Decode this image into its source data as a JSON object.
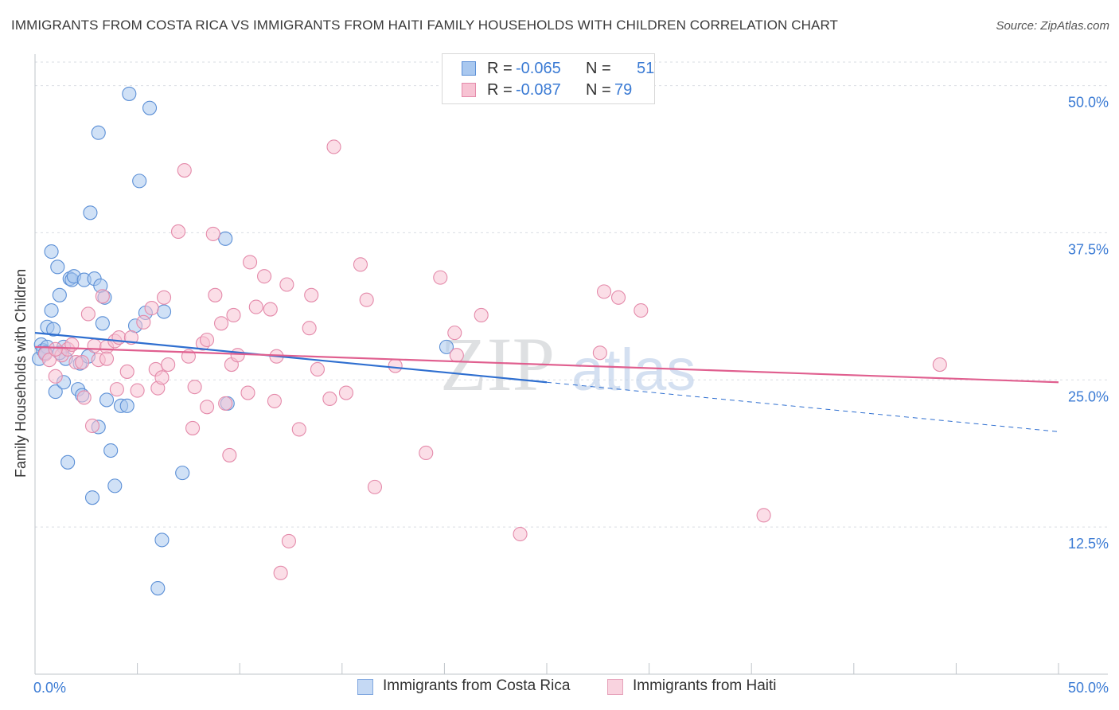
{
  "title": "IMMIGRANTS FROM COSTA RICA VS IMMIGRANTS FROM HAITI FAMILY HOUSEHOLDS WITH CHILDREN CORRELATION CHART",
  "source": "Source: ZipAtlas.com",
  "watermark": {
    "zip": "ZIP",
    "atlas": "atlas"
  },
  "legend": {
    "rows": [
      {
        "r_label": "R =",
        "r_value": "-0.065",
        "n_label": "N =",
        "n_value": "51",
        "color": "#a9c8ef",
        "border": "#5b8fd6"
      },
      {
        "r_label": "R =",
        "r_value": "-0.087",
        "n_label": "N =",
        "n_value": "79",
        "color": "#f7c3d3",
        "border": "#e48aaa"
      }
    ]
  },
  "bottom_legend": [
    {
      "label": "Immigrants from Costa Rica",
      "color": "#c5d9f4",
      "border": "#7ea6df"
    },
    {
      "label": "Immigrants from Haiti",
      "color": "#f9d3df",
      "border": "#e6a2ba"
    }
  ],
  "chart_data": {
    "type": "scatter",
    "title": "IMMIGRANTS FROM COSTA RICA VS IMMIGRANTS FROM HAITI FAMILY HOUSEHOLDS WITH CHILDREN CORRELATION CHART",
    "xlabel": "",
    "ylabel": "Family Households with Children",
    "xlim": [
      0,
      50
    ],
    "ylim": [
      0,
      52
    ],
    "x_tick_labels": [
      {
        "value": 0,
        "label": "0.0%"
      },
      {
        "value": 50,
        "label": "50.0%"
      }
    ],
    "y_ticks": [
      {
        "value": 12.5,
        "label": "12.5%"
      },
      {
        "value": 25,
        "label": "25.0%"
      },
      {
        "value": 37.5,
        "label": "37.5%"
      },
      {
        "value": 50,
        "label": "50.0%"
      }
    ],
    "series": [
      {
        "name": "Immigrants from Costa Rica",
        "color": "#a9c8ef",
        "stroke": "#5b8fd6",
        "trend": {
          "color": "#2f6fd0",
          "x0": 0,
          "y0": 29.0,
          "x1": 25,
          "y1": 24.8,
          "dash_to_x": 50,
          "dash_to_y": 20.6
        },
        "points": [
          [
            0.2,
            26.8
          ],
          [
            0.3,
            28.0
          ],
          [
            0.4,
            27.5
          ],
          [
            0.5,
            27.2
          ],
          [
            0.6,
            29.5
          ],
          [
            0.6,
            27.8
          ],
          [
            0.8,
            30.9
          ],
          [
            0.9,
            29.3
          ],
          [
            0.8,
            35.9
          ],
          [
            1.0,
            24.0
          ],
          [
            1.1,
            34.6
          ],
          [
            1.2,
            32.2
          ],
          [
            1.4,
            24.8
          ],
          [
            1.4,
            27.8
          ],
          [
            1.5,
            26.8
          ],
          [
            1.6,
            18.0
          ],
          [
            1.7,
            33.6
          ],
          [
            1.8,
            33.5
          ],
          [
            1.9,
            33.8
          ],
          [
            2.1,
            24.2
          ],
          [
            2.2,
            26.4
          ],
          [
            2.3,
            23.7
          ],
          [
            2.4,
            33.5
          ],
          [
            2.6,
            27.0
          ],
          [
            2.7,
            39.2
          ],
          [
            2.8,
            15.0
          ],
          [
            2.9,
            33.6
          ],
          [
            3.1,
            46.0
          ],
          [
            3.1,
            21.0
          ],
          [
            3.2,
            33.0
          ],
          [
            3.3,
            29.8
          ],
          [
            3.4,
            32.0
          ],
          [
            3.5,
            23.3
          ],
          [
            3.7,
            19.0
          ],
          [
            3.9,
            16.0
          ],
          [
            4.2,
            22.8
          ],
          [
            4.5,
            22.8
          ],
          [
            4.6,
            49.3
          ],
          [
            4.9,
            29.6
          ],
          [
            5.1,
            41.9
          ],
          [
            5.4,
            30.7
          ],
          [
            5.6,
            48.1
          ],
          [
            6.0,
            7.3
          ],
          [
            6.2,
            11.4
          ],
          [
            6.3,
            30.8
          ],
          [
            7.2,
            17.1
          ],
          [
            9.3,
            37.0
          ],
          [
            9.4,
            23.0
          ],
          [
            0.5,
            27.3
          ],
          [
            1.2,
            27.3
          ],
          [
            20.1,
            27.8
          ]
        ]
      },
      {
        "name": "Immigrants from Haiti",
        "color": "#f7c3d3",
        "stroke": "#e48aaa",
        "trend": {
          "color": "#e05f8f",
          "x0": 0,
          "y0": 27.8,
          "x1": 50,
          "y1": 24.8
        },
        "points": [
          [
            0.5,
            27.2
          ],
          [
            0.7,
            26.7
          ],
          [
            1.0,
            25.3
          ],
          [
            1.3,
            27.1
          ],
          [
            1.6,
            27.6
          ],
          [
            1.8,
            28.0
          ],
          [
            2.0,
            26.5
          ],
          [
            2.3,
            26.5
          ],
          [
            2.4,
            23.5
          ],
          [
            2.6,
            30.6
          ],
          [
            2.8,
            21.1
          ],
          [
            2.9,
            27.9
          ],
          [
            3.1,
            26.7
          ],
          [
            3.3,
            32.1
          ],
          [
            3.5,
            27.8
          ],
          [
            3.9,
            28.3
          ],
          [
            4.0,
            24.2
          ],
          [
            4.1,
            28.6
          ],
          [
            4.5,
            25.7
          ],
          [
            4.7,
            28.6
          ],
          [
            5.0,
            24.1
          ],
          [
            5.3,
            29.9
          ],
          [
            5.7,
            31.1
          ],
          [
            5.9,
            25.9
          ],
          [
            6.0,
            24.3
          ],
          [
            6.2,
            25.2
          ],
          [
            6.3,
            32.0
          ],
          [
            6.5,
            26.3
          ],
          [
            7.0,
            37.6
          ],
          [
            7.3,
            42.8
          ],
          [
            7.5,
            27.0
          ],
          [
            7.7,
            20.9
          ],
          [
            7.8,
            24.4
          ],
          [
            8.2,
            28.1
          ],
          [
            8.4,
            22.7
          ],
          [
            8.4,
            28.4
          ],
          [
            8.7,
            37.4
          ],
          [
            8.8,
            32.2
          ],
          [
            9.1,
            29.8
          ],
          [
            9.3,
            23.0
          ],
          [
            9.5,
            18.6
          ],
          [
            9.6,
            26.3
          ],
          [
            9.7,
            30.5
          ],
          [
            9.9,
            27.1
          ],
          [
            10.4,
            23.9
          ],
          [
            10.5,
            35.0
          ],
          [
            10.8,
            31.2
          ],
          [
            11.2,
            33.8
          ],
          [
            11.5,
            31.0
          ],
          [
            11.7,
            23.2
          ],
          [
            11.8,
            27.0
          ],
          [
            12.3,
            33.1
          ],
          [
            12.4,
            11.3
          ],
          [
            12.9,
            20.8
          ],
          [
            12.0,
            8.6
          ],
          [
            13.4,
            29.4
          ],
          [
            13.5,
            32.2
          ],
          [
            13.8,
            25.9
          ],
          [
            14.4,
            23.4
          ],
          [
            14.6,
            44.8
          ],
          [
            15.2,
            23.9
          ],
          [
            15.9,
            34.8
          ],
          [
            16.2,
            31.8
          ],
          [
            16.6,
            15.9
          ],
          [
            17.6,
            26.2
          ],
          [
            19.1,
            18.8
          ],
          [
            19.8,
            33.7
          ],
          [
            20.5,
            29.0
          ],
          [
            20.6,
            27.1
          ],
          [
            21.8,
            30.5
          ],
          [
            23.7,
            11.9
          ],
          [
            27.6,
            27.3
          ],
          [
            27.8,
            32.5
          ],
          [
            28.5,
            32.0
          ],
          [
            29.6,
            30.9
          ],
          [
            35.6,
            13.5
          ],
          [
            44.2,
            26.3
          ],
          [
            3.5,
            26.8
          ],
          [
            1.0,
            27.6
          ]
        ]
      }
    ],
    "legend": {
      "position": "top-center"
    }
  }
}
